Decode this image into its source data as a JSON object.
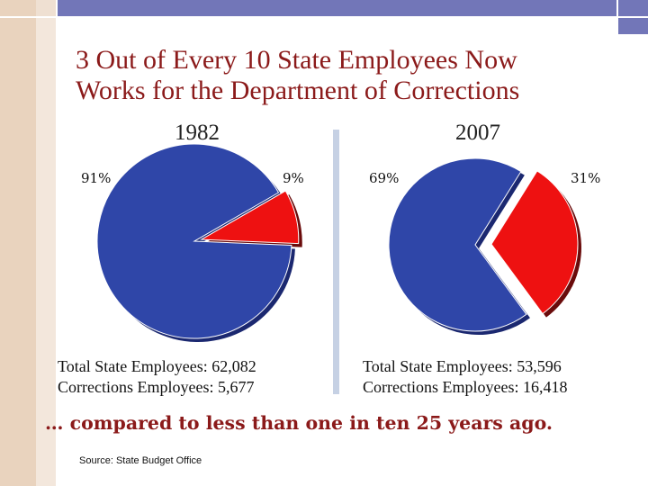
{
  "slide": {
    "title_line1": "3 Out of Every 10 State Employees Now",
    "title_line2": "Works for the Department of Corrections",
    "bottom_line": "… compared to less than one in ten 25 years ago.",
    "source": "Source:  State Budget Office"
  },
  "colors": {
    "frame_tan": "#e9d3be",
    "frame_blue": "#7276b8",
    "title": "#8b1a1a",
    "blue_slice": "#2f46a8",
    "red_slice": "#ee1111",
    "divider": "#c6d1e4"
  },
  "chart_data": [
    {
      "type": "pie",
      "title": "1982",
      "slices": [
        {
          "label": "91%",
          "value": 91,
          "color": "#2f46a8"
        },
        {
          "label": "9%",
          "value": 9,
          "color": "#ee1111",
          "exploded": true
        }
      ],
      "notes": [
        "Total State Employees:  62,082",
        "Corrections Employees: 5,677"
      ]
    },
    {
      "type": "pie",
      "title": "2007",
      "slices": [
        {
          "label": "69%",
          "value": 69,
          "color": "#2f46a8"
        },
        {
          "label": "31%",
          "value": 31,
          "color": "#ee1111",
          "exploded": true
        }
      ],
      "notes": [
        "Total State Employees:  53,596",
        "Corrections Employees: 16,418"
      ]
    }
  ]
}
